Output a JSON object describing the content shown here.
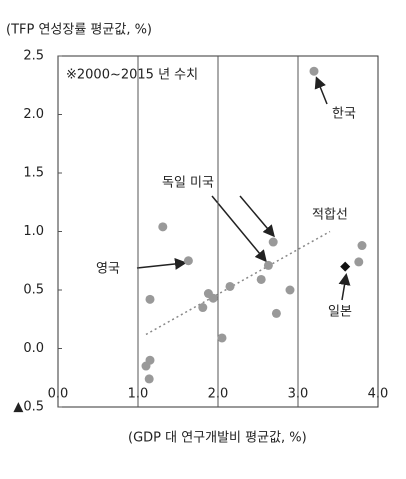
{
  "chart_data": {
    "type": "scatter",
    "ylabel": "(TFP 연성장률 평균값, %)",
    "xlabel": "(GDP 대 연구개발비 평균값, %)",
    "note": "※2000~2015 년 수치",
    "xlim": [
      0,
      4
    ],
    "ylim": [
      -0.5,
      2.5
    ],
    "xticks": [
      {
        "value": 0,
        "label": "0.0"
      },
      {
        "value": 1,
        "label": "1.0"
      },
      {
        "value": 2,
        "label": "2.0"
      },
      {
        "value": 3,
        "label": "3.0"
      },
      {
        "value": 4,
        "label": "4.0"
      }
    ],
    "yticks": [
      {
        "value": -0.5,
        "label": "▲0.5"
      },
      {
        "value": 0,
        "label": "0.0"
      },
      0.5,
      {
        "value": 1,
        "label": "1.0"
      },
      1.5,
      {
        "value": 2,
        "label": "2.0"
      },
      2.5
    ],
    "xgrid": true,
    "series": [
      {
        "color": "#999999",
        "marker": "circle",
        "x": [
          3.2,
          1.31,
          2.69,
          3.8,
          1.63,
          2.63,
          3.76,
          2.54,
          2.15,
          2.9,
          1.88,
          1.94,
          1.81,
          1.15,
          2.73,
          2.05,
          1.15,
          1.1,
          1.14
        ],
        "values": [
          2.37,
          1.04,
          0.91,
          0.88,
          0.75,
          0.71,
          0.74,
          0.59,
          0.53,
          0.5,
          0.47,
          0.43,
          0.35,
          0.42,
          0.3,
          0.09,
          -0.1,
          -0.15,
          -0.26
        ]
      },
      {
        "color": "#111111",
        "marker": "diamond",
        "x": [
          3.59
        ],
        "values": [
          0.7
        ]
      }
    ],
    "fit_line": {
      "color": "#888888",
      "x": [
        1.1,
        3.4
      ],
      "values": [
        0.12,
        1.0
      ]
    },
    "annotations": [
      "한국",
      "독일 미국",
      "영국",
      "적합선",
      "일본"
    ]
  }
}
